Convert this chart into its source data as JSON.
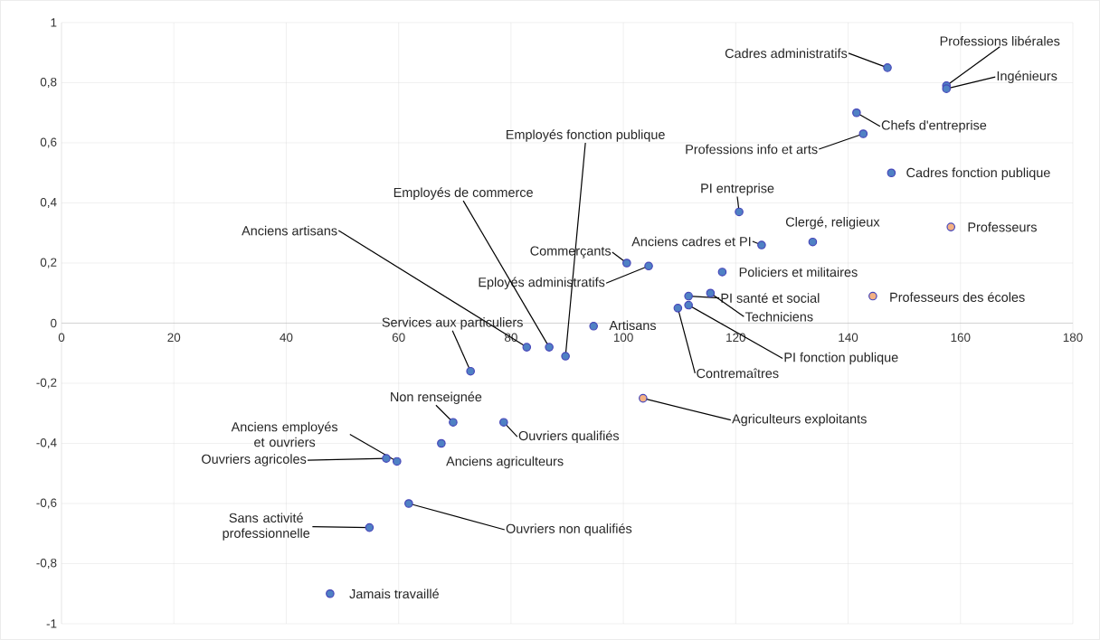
{
  "chart_data": {
    "type": "scatter",
    "marker": "circle",
    "grid": true,
    "x": [
      147,
      157.5,
      157.5,
      141.5,
      142.7,
      147.7,
      120.6,
      158.3,
      133.7,
      124.6,
      100.6,
      104.5,
      117.6,
      111.6,
      115.5,
      144.4,
      109.7,
      111.6,
      94.7,
      82.8,
      86.8,
      89.7,
      72.8,
      69.7,
      78.7,
      67.6,
      103.5,
      59.7,
      57.8,
      61.8,
      54.8,
      47.8
    ],
    "values": [
      0.85,
      0.79,
      0.78,
      0.7,
      0.63,
      0.5,
      0.37,
      0.32,
      0.27,
      0.26,
      0.2,
      0.19,
      0.17,
      0.09,
      0.1,
      0.09,
      0.05,
      0.06,
      -0.01,
      -0.08,
      -0.08,
      -0.11,
      -0.16,
      -0.33,
      -0.33,
      -0.4,
      -0.25,
      -0.46,
      -0.45,
      -0.6,
      -0.68,
      -0.9
    ],
    "colors": [
      "#4f81c4",
      "#4f81c4",
      "#4f81c4",
      "#4f81c4",
      "#4f81c4",
      "#4f81c4",
      "#4f81c4",
      "#f4b183",
      "#4f81c4",
      "#4f81c4",
      "#4f81c4",
      "#4f81c4",
      "#4f81c4",
      "#4f81c4",
      "#4f81c4",
      "#f4b183",
      "#4f81c4",
      "#4f81c4",
      "#4f81c4",
      "#4f81c4",
      "#4f81c4",
      "#4f81c4",
      "#4f81c4",
      "#4f81c4",
      "#4f81c4",
      "#4f81c4",
      "#f4b183",
      "#4f81c4",
      "#4f81c4",
      "#4f81c4",
      "#4f81c4",
      "#4f81c4"
    ],
    "xlim": [
      0,
      180
    ],
    "xticks": [
      0,
      20,
      40,
      60,
      80,
      100,
      120,
      140,
      160,
      180
    ],
    "ylim": [
      -1,
      1
    ],
    "yticks": [
      {
        "value": -1,
        "label": "-1"
      },
      {
        "value": -0.8,
        "label": "-0,8"
      },
      {
        "value": -0.6,
        "label": "-0,6"
      },
      {
        "value": -0.4,
        "label": "-0,4"
      },
      {
        "value": -0.2,
        "label": "-0,2"
      },
      {
        "value": 0,
        "label": "0"
      },
      {
        "value": 0.2,
        "label": "0,2"
      },
      {
        "value": 0.4,
        "label": "0,4"
      },
      {
        "value": 0.6,
        "label": "0,6"
      },
      {
        "value": 0.8,
        "label": "0,8"
      },
      {
        "value": 1,
        "label": "1"
      }
    ],
    "annotations": [
      {
        "text": "Cadres administratifs",
        "x": 147,
        "y": 0.85
      },
      {
        "text": "Professions libérales",
        "x": 157.5,
        "y": 0.79
      },
      {
        "text": "Ingénieurs",
        "x": 157.5,
        "y": 0.78
      },
      {
        "text": "Chefs d'entreprise",
        "x": 141.5,
        "y": 0.7
      },
      {
        "text": "Professions info et arts",
        "x": 142.7,
        "y": 0.63
      },
      {
        "text": "Cadres fonction publique",
        "x": 147.7,
        "y": 0.5
      },
      {
        "text": "PI entreprise",
        "x": 120.6,
        "y": 0.37
      },
      {
        "text": "Professeurs",
        "x": 158.3,
        "y": 0.32
      },
      {
        "text": "Clergé, religieux",
        "x": 133.7,
        "y": 0.27
      },
      {
        "text": "Anciens cadres et PI",
        "x": 124.6,
        "y": 0.26
      },
      {
        "text": "Commerçants",
        "x": 100.6,
        "y": 0.2
      },
      {
        "text": "Eployés administratifs",
        "x": 104.5,
        "y": 0.19
      },
      {
        "text": "Policiers et militaires",
        "x": 117.6,
        "y": 0.17
      },
      {
        "text": "PI santé et social",
        "x": 111.6,
        "y": 0.09
      },
      {
        "text": "Techniciens",
        "x": 115.5,
        "y": 0.1
      },
      {
        "text": "Professeurs des écoles",
        "x": 144.4,
        "y": 0.09
      },
      {
        "text": "Contremaîtres",
        "x": 109.7,
        "y": 0.05
      },
      {
        "text": "PI fonction publique",
        "x": 111.6,
        "y": 0.06
      },
      {
        "text": "Artisans",
        "x": 94.7,
        "y": -0.01
      },
      {
        "text": "Anciens artisans",
        "x": 82.8,
        "y": -0.08
      },
      {
        "text": "Employés de commerce",
        "x": 86.8,
        "y": -0.08
      },
      {
        "text": "Employés fonction publique",
        "x": 89.7,
        "y": -0.11
      },
      {
        "text": "Services aux particuliers",
        "x": 72.8,
        "y": -0.16
      },
      {
        "text": "Non renseignée",
        "x": 69.7,
        "y": -0.33
      },
      {
        "text": "Ouvriers qualifiés",
        "x": 78.7,
        "y": -0.33
      },
      {
        "text": "Anciens agriculteurs",
        "x": 67.6,
        "y": -0.4
      },
      {
        "text": "Agriculteurs exploitants",
        "x": 103.5,
        "y": -0.25
      },
      {
        "text": "Anciens employés et ouvriers",
        "x": 59.7,
        "y": -0.46
      },
      {
        "text": "Ouvriers agricoles",
        "x": 57.8,
        "y": -0.45
      },
      {
        "text": "Ouvriers non qualifiés",
        "x": 61.8,
        "y": -0.6
      },
      {
        "text": "Sans activité professionnelle",
        "x": 54.8,
        "y": -0.68
      },
      {
        "text": "Jamais travaillé",
        "x": 47.8,
        "y": -0.9
      }
    ]
  }
}
